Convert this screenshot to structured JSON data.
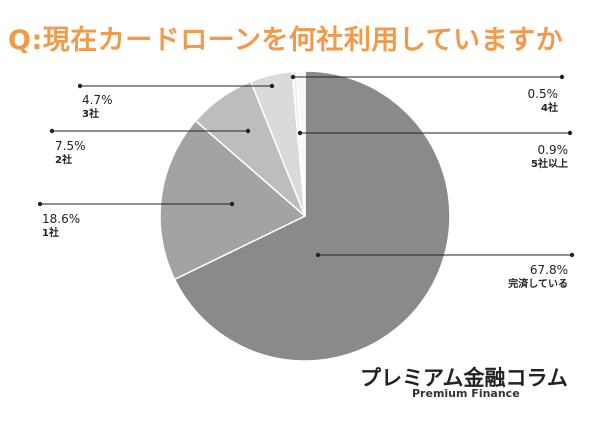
{
  "chart_data": {
    "type": "pie",
    "title": "Q:現在カードローンを何社利用していますか",
    "slices": [
      {
        "label": "完済している",
        "value": 67.8,
        "value_label": "67.8%",
        "color": "#8a8a8a"
      },
      {
        "label": "1社",
        "value": 18.6,
        "value_label": "18.6%",
        "color": "#a3a3a3"
      },
      {
        "label": "2社",
        "value": 7.5,
        "value_label": "7.5%",
        "color": "#bdbdbd"
      },
      {
        "label": "3社",
        "value": 4.7,
        "value_label": "4.7%",
        "color": "#dadada"
      },
      {
        "label": "4社",
        "value": 0.5,
        "value_label": "0.5%",
        "color": "#eeeeee"
      },
      {
        "label": "5社以上",
        "value": 0.9,
        "value_label": "0.9%",
        "color": "#f7f7f7"
      }
    ]
  },
  "brand": {
    "name_jp": "プレミアム金融コラム",
    "name_en": "Premium Finance"
  }
}
